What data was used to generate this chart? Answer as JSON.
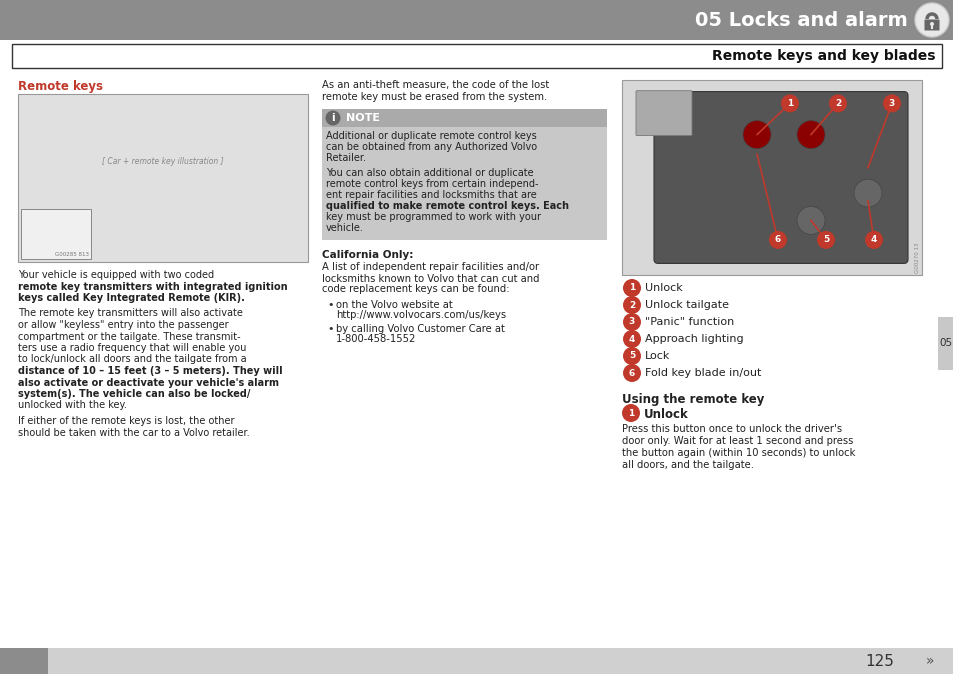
{
  "page_title": "05 Locks and alarm",
  "section_title": "Remote keys and key blades",
  "subsection_left": "Remote keys",
  "page_number": "125",
  "header_bg": "#8c8c8c",
  "header_text_color": "#ffffff",
  "body_bg": "#ffffff",
  "note_bg": "#c8c8c8",
  "note_header_bg": "#aaaaaa",
  "note_text": "NOTE",
  "subsection_color": "#c0392b",
  "tab_color": "#c8c8c8",
  "footer_bg": "#d0d0d0",
  "footer_dark": "#8c8c8c",
  "numbered_circle_color": "#c0392b",
  "numbered_circle_text": "#ffffff",
  "arrow_color": "#c0392b",
  "col1_text_lines": [
    "Your vehicle is equipped with two coded",
    "remote key transmitters with integrated ignition",
    "keys called Key Integrated Remote (KIR).",
    "",
    "The remote key transmitters will also activate",
    "or allow \"keyless\" entry into the passenger",
    "compartment or the tailgate. These transmit-",
    "ters use a radio frequency that will enable you",
    "to lock/unlock all doors and the tailgate from a",
    "distance of 10 – 15 feet (3 – 5 meters). They will",
    "also activate or deactivate your vehicle's alarm",
    "system(s). The vehicle can also be locked/",
    "unlocked with the key.",
    "",
    "If either of the remote keys is lost, the other",
    "should be taken with the car to a Volvo retailer."
  ],
  "col1_bold_lines": [
    1,
    2,
    9,
    10,
    11
  ],
  "col2_intro_lines": [
    "As an anti-theft measure, the code of the lost",
    "remote key must be erased from the system."
  ],
  "col2_note_lines": [
    "Additional or duplicate remote control keys",
    "can be obtained from any Authorized Volvo",
    "Retailer.",
    "",
    "You can also obtain additional or duplicate",
    "remote control keys from certain independ-",
    "ent repair facilities and locksmiths that are",
    "qualified to make remote control keys. Each",
    "key must be programmed to work with your",
    "vehicle."
  ],
  "col2_note_bold": [
    7
  ],
  "col2_california_title": "California Only:",
  "col2_california_lines": [
    "A list of independent repair facilities and/or",
    "locksmiths known to Volvo that can cut and",
    "code replacement keys can be found:"
  ],
  "col2_bullet1_line1": "on the Volvo website at",
  "col2_bullet1_line2": "http://www.volvocars.com/us/keys",
  "col2_bullet2_line1": "by calling Volvo Customer Care at",
  "col2_bullet2_line2": "1-800-458-1552",
  "col3_labels": [
    {
      "num": "1",
      "text": "Unlock"
    },
    {
      "num": "2",
      "text": "Unlock tailgate"
    },
    {
      "num": "3",
      "text": "\"Panic\" function"
    },
    {
      "num": "4",
      "text": "Approach lighting"
    },
    {
      "num": "5",
      "text": "Lock"
    },
    {
      "num": "6",
      "text": "Fold key blade in/out"
    }
  ],
  "using_title": "Using the remote key",
  "using_subtitle": "Unlock",
  "using_body_lines": [
    "Press this button once to unlock the driver's",
    "door only. Wait for at least 1 second and press",
    "the button again (within 10 seconds) to unlock",
    "all doors, and the tailgate."
  ],
  "footer_tab_text": "05"
}
